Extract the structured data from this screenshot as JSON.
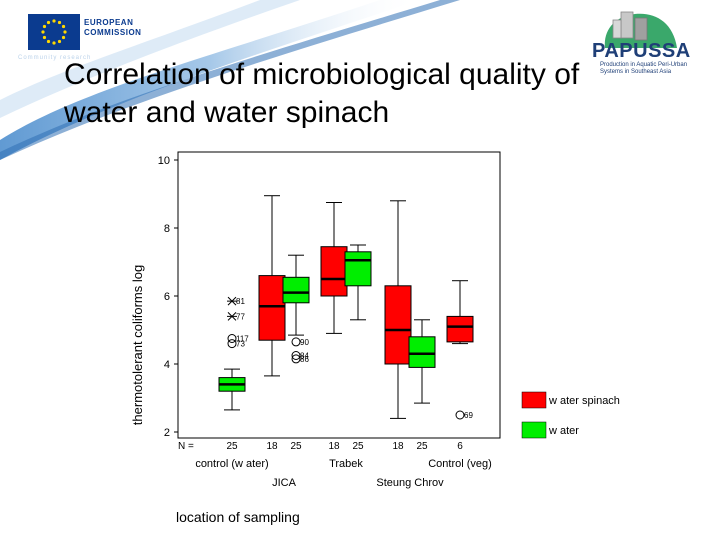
{
  "slide": {
    "title_lines": [
      "Correlation of microbiological quality of",
      "water and water spinach"
    ]
  },
  "logos": {
    "eu_line1": "EUROPEAN",
    "eu_line2": "COMMISSION",
    "eu_caption": "Community research",
    "papussa_name": "PAPUSSA",
    "papussa_caption": "Production in Aquatic Peri-Urban Systems in Southeast Asia"
  },
  "colors": {
    "water_spinach": "#ff0000",
    "water": "#00ee00",
    "median": "#000000",
    "banner": "#4f8fce"
  },
  "chart_data": {
    "type": "boxplot",
    "ylabel": "thermotolerant coliforms log",
    "xlabel": "location of sampling",
    "ylim": [
      2,
      10
    ],
    "yticks": [
      2,
      4,
      6,
      8,
      10
    ],
    "n_prefix": "N =",
    "groups": [
      {
        "label": "control (w ater)",
        "row": 1
      },
      {
        "label": "JICA",
        "row": 2
      },
      {
        "label": "Trabek",
        "row": 1
      },
      {
        "label": "Steung Chrov",
        "row": 2
      },
      {
        "label": "Control (veg)",
        "row": 1
      }
    ],
    "legend": [
      {
        "name": "w ater spinach",
        "color": "#ff0000"
      },
      {
        "name": "w ater",
        "color": "#00ee00"
      }
    ],
    "boxes": [
      {
        "group": 0,
        "series": "w ater",
        "n": "25",
        "whisker_low": 2.65,
        "q1": 3.2,
        "median": 3.4,
        "q3": 3.6,
        "whisker_high": 3.85,
        "outliers": [
          {
            "y": 5.85,
            "label": "81",
            "marker": "star"
          },
          {
            "y": 5.4,
            "label": "77",
            "marker": "star"
          },
          {
            "y": 4.75,
            "label": "117",
            "marker": "circle"
          },
          {
            "y": 4.6,
            "label": "73",
            "marker": "circle"
          }
        ]
      },
      {
        "group": 1,
        "series": "w ater spinach",
        "n": "18",
        "whisker_low": 3.65,
        "q1": 4.7,
        "median": 5.7,
        "q3": 6.6,
        "whisker_high": 8.95,
        "outliers": []
      },
      {
        "group": 1,
        "series": "w ater",
        "n": "25",
        "whisker_low": 4.85,
        "q1": 5.8,
        "median": 6.1,
        "q3": 6.55,
        "whisker_high": 7.2,
        "outliers": [
          {
            "y": 4.65,
            "label": "90",
            "marker": "circle"
          },
          {
            "y": 4.25,
            "label": "84",
            "marker": "circle"
          },
          {
            "y": 4.15,
            "label": "86",
            "marker": "circle"
          }
        ]
      },
      {
        "group": 2,
        "series": "w ater spinach",
        "n": "18",
        "whisker_low": 4.9,
        "q1": 6.0,
        "median": 6.5,
        "q3": 7.45,
        "whisker_high": 8.75,
        "outliers": []
      },
      {
        "group": 2,
        "series": "w ater",
        "n": "25",
        "whisker_low": 5.3,
        "q1": 6.3,
        "median": 7.05,
        "q3": 7.3,
        "whisker_high": 7.5,
        "outliers": []
      },
      {
        "group": 3,
        "series": "w ater spinach",
        "n": "18",
        "whisker_low": 2.4,
        "q1": 4.0,
        "median": 5.0,
        "q3": 6.3,
        "whisker_high": 8.8,
        "outliers": []
      },
      {
        "group": 3,
        "series": "w ater",
        "n": "25",
        "whisker_low": 2.85,
        "q1": 3.9,
        "median": 4.3,
        "q3": 4.8,
        "whisker_high": 5.3,
        "outliers": []
      },
      {
        "group": 4,
        "series": "w ater spinach",
        "n": "6",
        "whisker_low": 4.6,
        "q1": 4.65,
        "median": 5.1,
        "q3": 5.4,
        "whisker_high": 6.45,
        "outliers": [
          {
            "y": 2.5,
            "label": "69",
            "marker": "circle"
          }
        ]
      }
    ]
  }
}
